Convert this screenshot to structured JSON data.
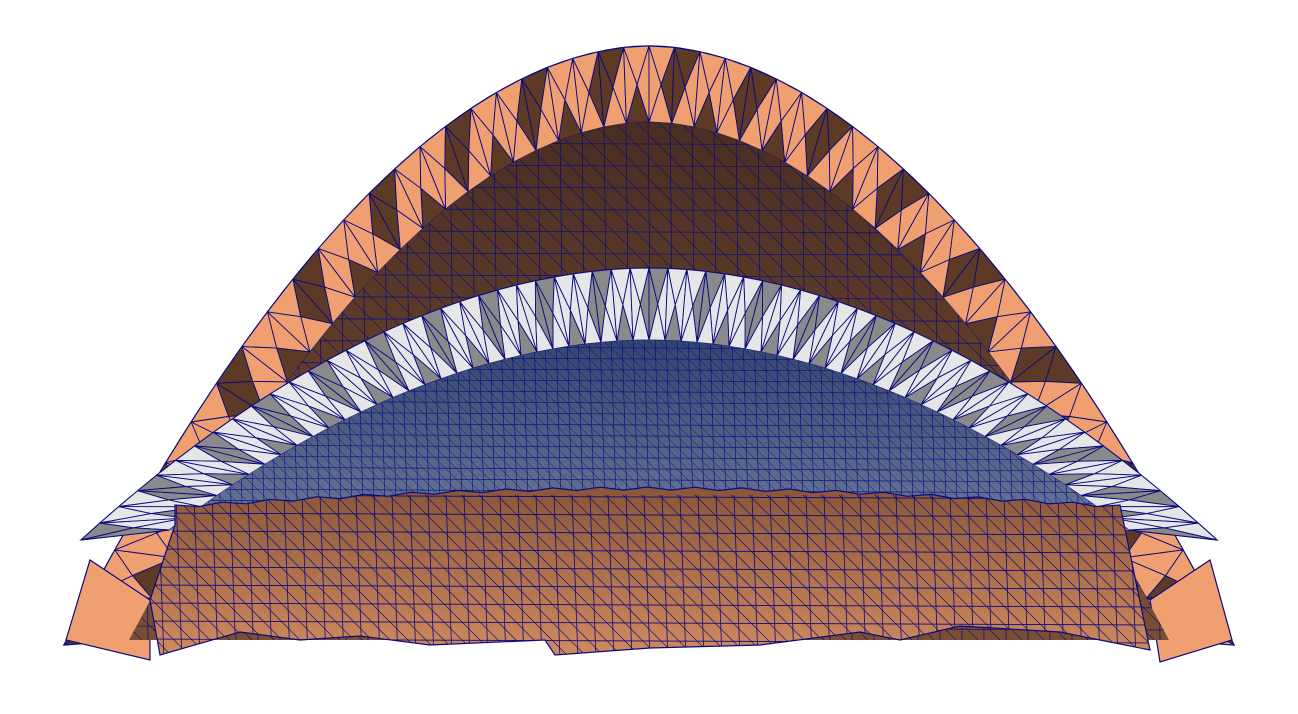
{
  "scene": {
    "colors": {
      "background": "#ffffff",
      "wireframe": "#0a0a80",
      "outer_shell_light": "#f0a070",
      "outer_shell_dark": "#5c3a26",
      "inner_dome_top": "#4a2e22",
      "inner_dome_bottom": "#a06a48",
      "white_band": "#d8d8d8",
      "white_band_shadow": "#8a8a8a",
      "blue_dome_top": "#3a4c7a",
      "blue_dome_bottom": "#6a7898",
      "skirt_light": "#c48058",
      "skirt_dark": "#7a4a30"
    },
    "layers": [
      {
        "name": "outer-shell",
        "icon": "mesh-shell"
      },
      {
        "name": "inner-brown-dome",
        "icon": "mesh-dome"
      },
      {
        "name": "white-band",
        "icon": "mesh-band"
      },
      {
        "name": "blue-dome",
        "icon": "mesh-dome"
      },
      {
        "name": "front-skirt",
        "icon": "mesh-skirt"
      }
    ]
  }
}
